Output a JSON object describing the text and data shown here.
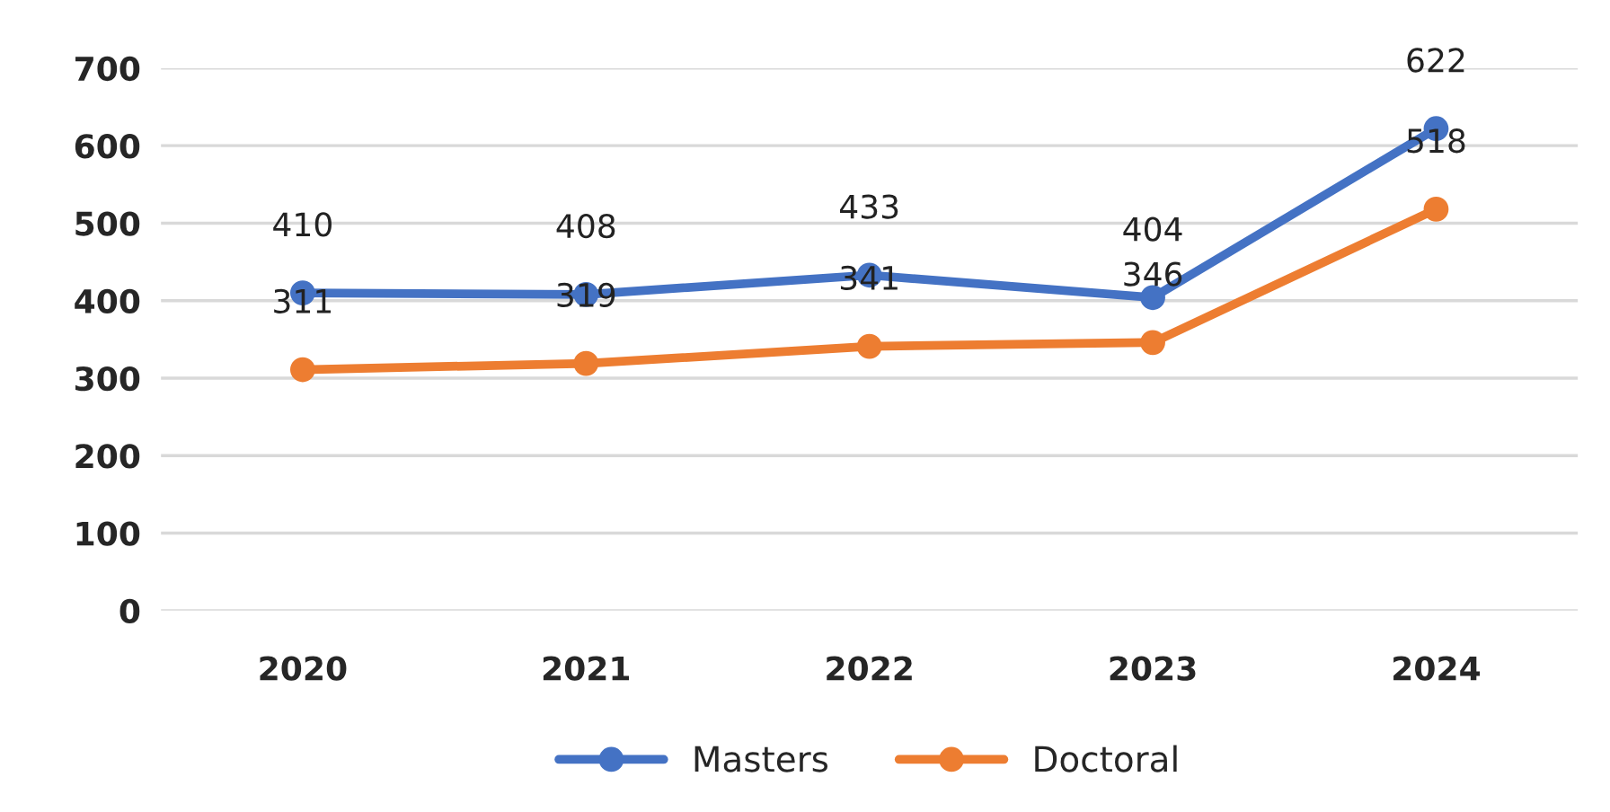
{
  "chart_data": {
    "type": "line",
    "categories": [
      "2020",
      "2021",
      "2022",
      "2023",
      "2024"
    ],
    "series": [
      {
        "name": "Masters",
        "color": "#4472c4",
        "values": [
          410,
          408,
          433,
          404,
          622
        ]
      },
      {
        "name": "Doctoral",
        "color": "#ed7d31",
        "values": [
          311,
          319,
          341,
          346,
          518
        ]
      }
    ],
    "ylim": [
      0,
      700
    ],
    "yticks": [
      0,
      100,
      200,
      300,
      400,
      500,
      600,
      700
    ],
    "grid": "y",
    "legend": "bottom",
    "marker": "circle",
    "line_style": "solid",
    "data_labels": true
  }
}
